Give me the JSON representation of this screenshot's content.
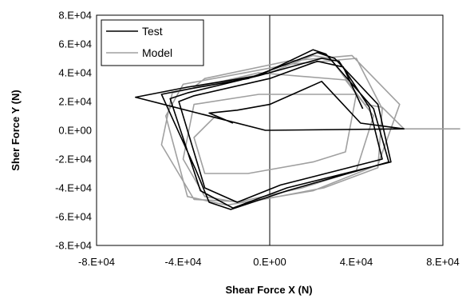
{
  "chart_data": {
    "type": "line",
    "xlabel": "Shear Force X (N)",
    "ylabel": "Sher Force Y (N)",
    "xlim": [
      -80000,
      80000
    ],
    "ylim": [
      -80000,
      80000
    ],
    "x_ticks": [
      -80000,
      -40000,
      0,
      40000,
      80000
    ],
    "x_tick_labels": [
      "-8.E+04",
      "-4.E+04",
      "0.E+00",
      "4.E+04",
      "8.E+04"
    ],
    "y_ticks": [
      80000,
      60000,
      40000,
      20000,
      0,
      -20000,
      -40000,
      -60000,
      -80000
    ],
    "y_tick_labels": [
      "8.E+04",
      "6.E+04",
      "4.E+04",
      "2.E+04",
      "0.E+00",
      "-2.E+04",
      "-4.E+04",
      "-6.E+04",
      "-8.E+04"
    ],
    "grid": true,
    "legend_position": "top-left",
    "colors": {
      "test": "#000000",
      "model": "#a0a0a0"
    },
    "series": [
      {
        "name": "Test",
        "color": "#000000",
        "points": [
          [
            -17000,
            5000
          ],
          [
            -28000,
            12000
          ],
          [
            -15000,
            14000
          ],
          [
            0,
            18000
          ],
          [
            15000,
            28000
          ],
          [
            24000,
            34000
          ],
          [
            42000,
            5000
          ],
          [
            62000,
            1000
          ],
          [
            -2000,
            0
          ],
          [
            -62000,
            23000
          ],
          [
            -38000,
            30000
          ],
          [
            -5000,
            38000
          ],
          [
            20000,
            56000
          ],
          [
            26000,
            53000
          ],
          [
            48000,
            15000
          ],
          [
            55000,
            -22000
          ],
          [
            8000,
            -42000
          ],
          [
            -18000,
            -55000
          ],
          [
            -28000,
            -50000
          ],
          [
            -34000,
            -28000
          ],
          [
            -50000,
            25000
          ],
          [
            -40000,
            28000
          ],
          [
            -10000,
            36000
          ],
          [
            22000,
            54000
          ],
          [
            30000,
            50000
          ],
          [
            50000,
            18000
          ],
          [
            56000,
            -22000
          ],
          [
            8000,
            -40000
          ],
          [
            -17000,
            -54000
          ],
          [
            -32000,
            -42000
          ],
          [
            -46000,
            22000
          ],
          [
            -38000,
            26000
          ],
          [
            -5000,
            38000
          ],
          [
            24000,
            50000
          ],
          [
            32000,
            48000
          ],
          [
            46000,
            16000
          ],
          [
            52000,
            -20000
          ],
          [
            5000,
            -38000
          ],
          [
            -15000,
            -50000
          ],
          [
            -30000,
            -40000
          ],
          [
            -42000,
            20000
          ],
          [
            -35000,
            24000
          ],
          [
            0,
            36000
          ],
          [
            22000,
            48000
          ],
          [
            34000,
            44000
          ],
          [
            43000,
            15000
          ]
        ]
      },
      {
        "name": "Model",
        "color": "#a0a0a0",
        "points": [
          [
            -25000,
            10000
          ],
          [
            -35000,
            -5000
          ],
          [
            -30000,
            -30000
          ],
          [
            -10000,
            -30000
          ],
          [
            20000,
            -22000
          ],
          [
            35000,
            -15000
          ],
          [
            40000,
            25000
          ],
          [
            20000,
            25000
          ],
          [
            -5000,
            25000
          ],
          [
            -35000,
            18000
          ],
          [
            -40000,
            -20000
          ],
          [
            -30000,
            -46000
          ],
          [
            -15000,
            -50000
          ],
          [
            15000,
            -40000
          ],
          [
            40000,
            -28000
          ],
          [
            48000,
            10000
          ],
          [
            35000,
            35000
          ],
          [
            -5000,
            40000
          ],
          [
            -45000,
            26000
          ],
          [
            -50000,
            -10000
          ],
          [
            -35000,
            -48000
          ],
          [
            -10000,
            -50000
          ],
          [
            25000,
            -40000
          ],
          [
            50000,
            -26000
          ],
          [
            52000,
            15000
          ],
          [
            40000,
            50000
          ],
          [
            10000,
            46000
          ],
          [
            -40000,
            32000
          ],
          [
            -48000,
            10000
          ],
          [
            -38000,
            -46000
          ],
          [
            -20000,
            -52000
          ],
          [
            20000,
            -42000
          ],
          [
            50000,
            -24000
          ],
          [
            60000,
            18000
          ],
          [
            38000,
            52000
          ],
          [
            8000,
            48000
          ],
          [
            -30000,
            36000
          ],
          [
            -35000,
            30000
          ],
          [
            0,
            40000
          ],
          [
            20000,
            52000
          ],
          [
            28000,
            50000
          ],
          [
            44000,
            18000
          ],
          [
            52000,
            16000
          ],
          [
            62000,
            1000
          ],
          [
            88000,
            1000
          ]
        ]
      }
    ]
  }
}
